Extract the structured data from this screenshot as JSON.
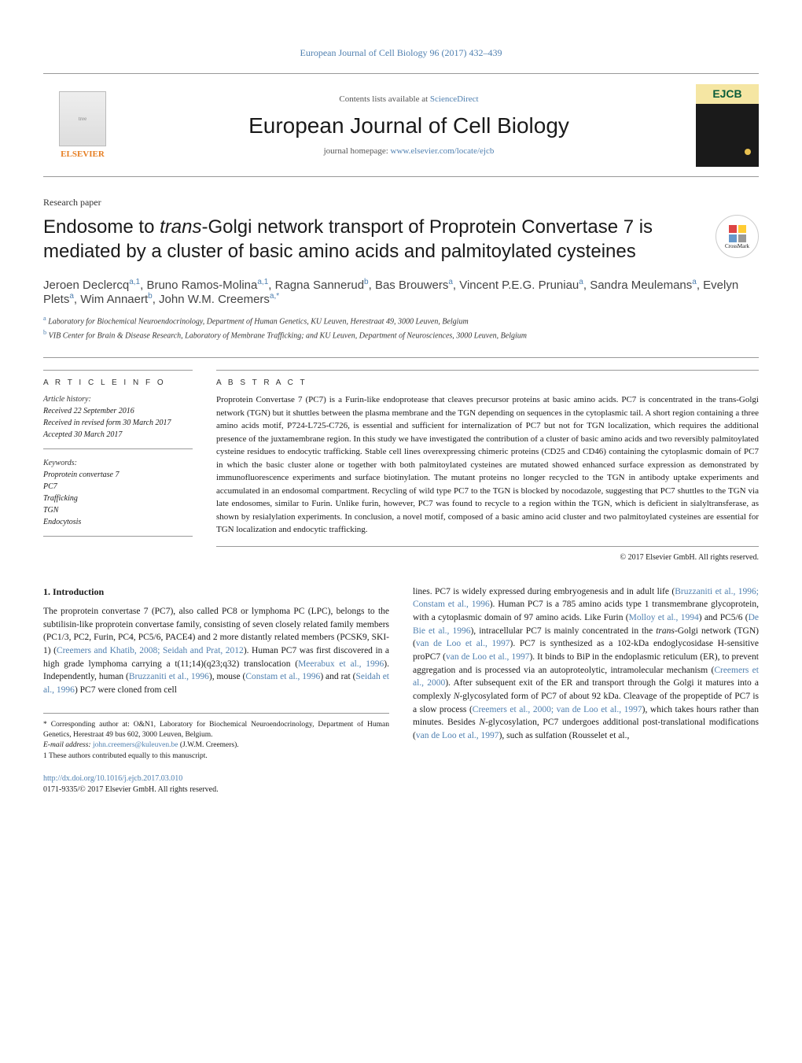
{
  "journal_header": "European Journal of Cell Biology 96 (2017) 432–439",
  "contents_line_prefix": "Contents lists available at ",
  "contents_line_link": "ScienceDirect",
  "journal_title": "European Journal of Cell Biology",
  "homepage_prefix": "journal homepage: ",
  "homepage_link": "www.elsevier.com/locate/ejcb",
  "elsevier": "ELSEVIER",
  "cover_abbrev": "EJCB",
  "crossmark_label": "CrossMark",
  "paper_type": "Research paper",
  "title_part1": "Endosome to ",
  "title_italic": "trans",
  "title_part2": "-Golgi network transport of Proprotein Convertase 7 is mediated by a cluster of basic amino acids and palmitoylated cysteines",
  "authors": [
    {
      "name": "Jeroen Declercq",
      "sup": "a,1"
    },
    {
      "name": "Bruno Ramos-Molina",
      "sup": "a,1"
    },
    {
      "name": "Ragna Sannerud",
      "sup": "b"
    },
    {
      "name": "Bas Brouwers",
      "sup": "a"
    },
    {
      "name": "Vincent P.E.G. Pruniau",
      "sup": "a"
    },
    {
      "name": "Sandra Meulemans",
      "sup": "a"
    },
    {
      "name": "Evelyn Plets",
      "sup": "a"
    },
    {
      "name": "Wim Annaert",
      "sup": "b"
    },
    {
      "name": "John W.M. Creemers",
      "sup": "a,*"
    }
  ],
  "affiliations": [
    {
      "sup": "a",
      "text": "Laboratory for Biochemical Neuroendocrinology, Department of Human Genetics, KU Leuven, Herestraat 49, 3000 Leuven, Belgium"
    },
    {
      "sup": "b",
      "text": "VIB Center for Brain & Disease Research, Laboratory of Membrane Trafficking; and KU Leuven, Department of Neurosciences, 3000 Leuven, Belgium"
    }
  ],
  "article_info_heading": "A R T I C L E   I N F O",
  "abstract_heading": "A B S T R A C T",
  "history_label": "Article history:",
  "history": [
    "Received 22 September 2016",
    "Received in revised form 30 March 2017",
    "Accepted 30 March 2017"
  ],
  "keywords_label": "Keywords:",
  "keywords": [
    "Proprotein convertase 7",
    "PC7",
    "Trafficking",
    "TGN",
    "Endocytosis"
  ],
  "abstract": "Proprotein Convertase 7 (PC7) is a Furin-like endoprotease that cleaves precursor proteins at basic amino acids. PC7 is concentrated in the trans-Golgi network (TGN) but it shuttles between the plasma membrane and the TGN depending on sequences in the cytoplasmic tail. A short region containing a three amino acids motif, P724-L725-C726, is essential and sufficient for internalization of PC7 but not for TGN localization, which requires the additional presence of the juxtamembrane region. In this study we have investigated the contribution of a cluster of basic amino acids and two reversibly palmitoylated cysteine residues to endocytic trafficking. Stable cell lines overexpressing chimeric proteins (CD25 and CD46) containing the cytoplasmic domain of PC7 in which the basic cluster alone or together with both palmitoylated cysteines are mutated showed enhanced surface expression as demonstrated by immunofluorescence experiments and surface biotinylation. The mutant proteins no longer recycled to the TGN in antibody uptake experiments and accumulated in an endosomal compartment. Recycling of wild type PC7 to the TGN is blocked by nocodazole, suggesting that PC7 shuttles to the TGN via late endosomes, similar to Furin. Unlike furin, however, PC7 was found to recycle to a region within the TGN, which is deficient in sialyltransferase, as shown by resialylation experiments. In conclusion, a novel motif, composed of a basic amino acid cluster and two palmitoylated cysteines are essential for TGN localization and endocytic trafficking.",
  "copyright": "© 2017 Elsevier GmbH. All rights reserved.",
  "section1_heading": "1. Introduction",
  "body_left": "The proprotein convertase 7 (PC7), also called PC8 or lymphoma PC (LPC), belongs to the subtilisin-like proprotein convertase family, consisting of seven closely related family members (PC1/3, PC2, Furin, PC4, PC5/6, PACE4) and 2 more distantly related members (PCSK9, SKI-1) (Creemers and Khatib, 2008; Seidah and Prat, 2012). Human PC7 was first discovered in a high grade lymphoma carrying a t(11;14)(q23;q32) translocation (Meerabux et al., 1996). Independently, human (Bruzzaniti et al., 1996), mouse (Constam et al., 1996) and rat (Seidah et al., 1996) PC7 were cloned from cell",
  "body_right": "lines. PC7 is widely expressed during embryogenesis and in adult life (Bruzzaniti et al., 1996; Constam et al., 1996). Human PC7 is a 785 amino acids type 1 transmembrane glycoprotein, with a cytoplasmic domain of 97 amino acids. Like Furin (Molloy et al., 1994) and PC5/6 (De Bie et al., 1996), intracellular PC7 is mainly concentrated in the trans-Golgi network (TGN) (van de Loo et al., 1997). PC7 is synthesized as a 102-kDa endoglycosidase H-sensitive proPC7 (van de Loo et al., 1997). It binds to BiP in the endoplasmic reticulum (ER), to prevent aggregation and is processed via an autoproteolytic, intramolecular mechanism (Creemers et al., 2000). After subsequent exit of the ER and transport through the Golgi it matures into a complexly N-glycosylated form of PC7 of about 92 kDa. Cleavage of the propeptide of PC7 is a slow process (Creemers et al., 2000; van de Loo et al., 1997), which takes hours rather than minutes. Besides N-glycosylation, PC7 undergoes additional post-translational modifications (van de Loo et al., 1997), such as sulfation (Rousselet et al.,",
  "footnote_corresponding": "* Corresponding author at: O&N1, Laboratory for Biochemical Neuroendocrinology, Department of Human Genetics, Herestraat 49 bus 602, 3000 Leuven, Belgium.",
  "footnote_email_label": "E-mail address: ",
  "footnote_email": "john.creemers@kuleuven.be",
  "footnote_email_suffix": " (J.W.M. Creemers).",
  "footnote_equal": "1 These authors contributed equally to this manuscript.",
  "doi": "http://dx.doi.org/10.1016/j.ejcb.2017.03.010",
  "issn_line": "0171-9335/© 2017 Elsevier GmbH. All rights reserved.",
  "colors": {
    "link": "#5080b0",
    "elsevier": "#e67e22",
    "cover_bg": "#1a1a1a",
    "cover_top": "#f5e6a3",
    "cover_text": "#0a5c3a"
  }
}
